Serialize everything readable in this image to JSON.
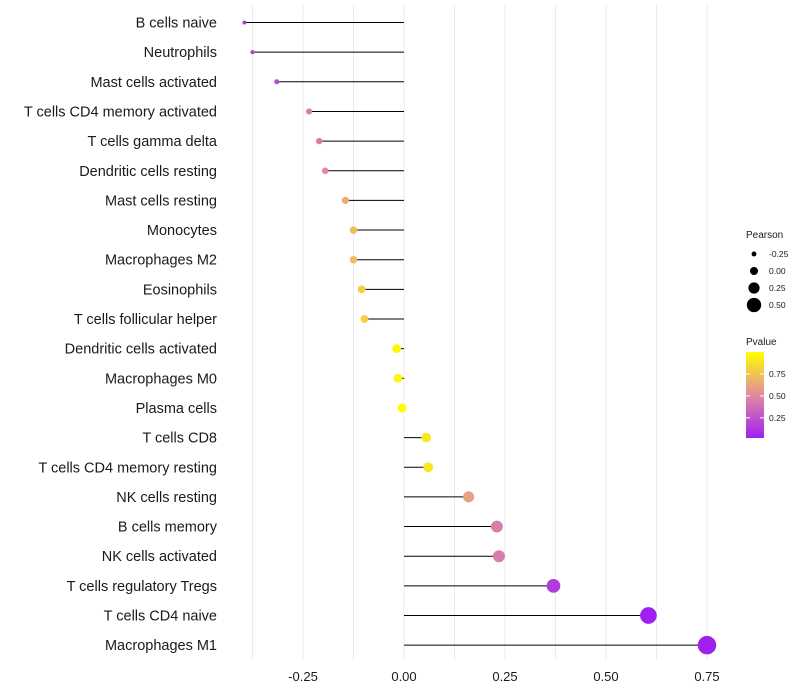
{
  "chart_data": {
    "type": "lollipop",
    "title": "",
    "xlabel": "",
    "ylabel": "",
    "xlim": [
      -0.43,
      0.85
    ],
    "x_ticks": [
      -0.25,
      0.0,
      0.25,
      0.5,
      0.75
    ],
    "x_tick_labels": [
      "-0.25",
      "0.00",
      "0.25",
      "0.50",
      "0.75"
    ],
    "categories": [
      "B cells naive",
      "Neutrophils",
      "Mast cells activated",
      "T cells CD4 memory activated",
      "T cells gamma delta",
      "Dendritic cells resting",
      "Mast cells resting",
      "Monocytes",
      "Macrophages M2",
      "Eosinophils",
      "T cells follicular helper",
      "Dendritic cells activated",
      "Macrophages M0",
      "Plasma cells",
      "T cells CD8",
      "T cells CD4 memory resting",
      "NK cells resting",
      "B cells memory",
      "NK cells activated",
      "T cells regulatory  Tregs ",
      "T cells CD4 naive",
      "Macrophages M1"
    ],
    "pearson": [
      -0.395,
      -0.375,
      -0.315,
      -0.235,
      -0.21,
      -0.195,
      -0.145,
      -0.125,
      -0.125,
      -0.105,
      -0.098,
      -0.018,
      -0.015,
      -0.005,
      0.055,
      0.06,
      0.16,
      0.23,
      0.235,
      0.37,
      0.605,
      0.75
    ],
    "pvalue": [
      0.15,
      0.18,
      0.22,
      0.45,
      0.45,
      0.5,
      0.65,
      0.72,
      0.72,
      0.8,
      0.8,
      0.97,
      0.97,
      1.0,
      0.9,
      0.9,
      0.6,
      0.45,
      0.45,
      0.15,
      0.02,
      0.02
    ],
    "size_legend": {
      "title": "Pearson",
      "values": [
        -0.25,
        0.0,
        0.25,
        0.5
      ],
      "labels": [
        "-0.25",
        "0.00",
        "0.25",
        "0.50"
      ]
    },
    "color_legend": {
      "title": "Pvalue",
      "ticks": [
        0.25,
        0.5,
        0.75
      ],
      "labels": [
        "0.25",
        "0.50",
        "0.75"
      ],
      "range": [
        0.02,
        1.0
      ],
      "low_color": "#A020F0",
      "mid_color": "#E08BA0",
      "high_color": "#FFFF00"
    }
  }
}
